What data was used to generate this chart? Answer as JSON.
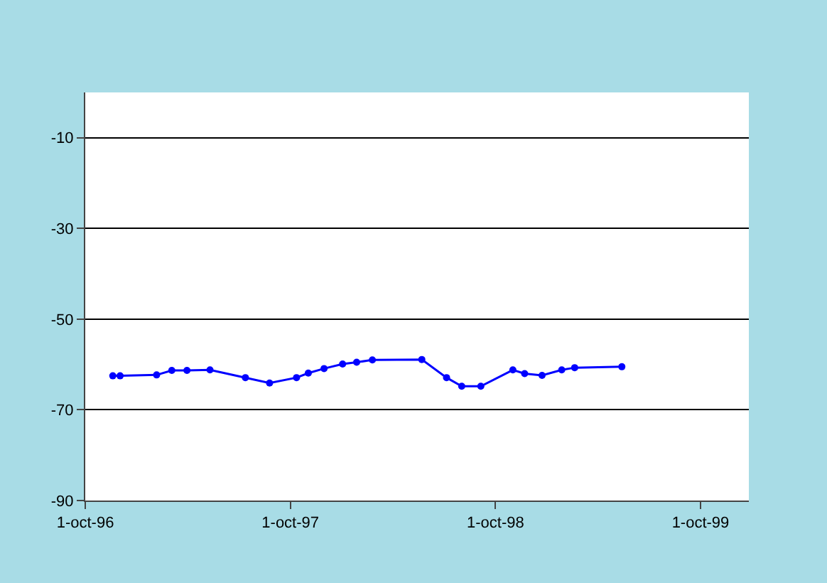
{
  "chart_data": {
    "type": "line",
    "marker": "circle",
    "grid": "y",
    "x": [
      "1996-11-19",
      "1996-12-02",
      "1997-02-05",
      "1997-03-04",
      "1997-03-31",
      "1997-05-11",
      "1997-07-13",
      "1997-08-25",
      "1997-10-12",
      "1997-11-02",
      "1997-11-30",
      "1998-01-02",
      "1998-01-27",
      "1998-02-24",
      "1998-05-23",
      "1998-07-06",
      "1998-08-02",
      "1998-09-05",
      "1998-11-01",
      "1998-11-22",
      "1998-12-23",
      "1999-01-27",
      "1999-02-19",
      "1999-05-14"
    ],
    "series": [
      {
        "color": "#0000ff",
        "values": [
          -62.5,
          -62.5,
          -62.3,
          -61.3,
          -61.3,
          -61.2,
          -62.9,
          -64.1,
          -62.9,
          -61.9,
          -60.9,
          -59.9,
          -59.5,
          -59.0,
          -58.9,
          -62.9,
          -64.8,
          -64.8,
          -61.2,
          -62.0,
          -62.4,
          -61.2,
          -60.7,
          -60.5
        ]
      }
    ],
    "xlim": [
      "1996-10-01",
      "1999-12-26"
    ],
    "xticks": [
      {
        "value": "1996-10-01",
        "label": "1-oct-96"
      },
      {
        "value": "1997-10-01",
        "label": "1-oct-97"
      },
      {
        "value": "1998-10-01",
        "label": "1-oct-98"
      },
      {
        "value": "1999-10-01",
        "label": "1-oct-99"
      }
    ],
    "ylim": [
      -90,
      0
    ],
    "yticks": [
      -10,
      -30,
      -50,
      -70,
      -90
    ]
  }
}
